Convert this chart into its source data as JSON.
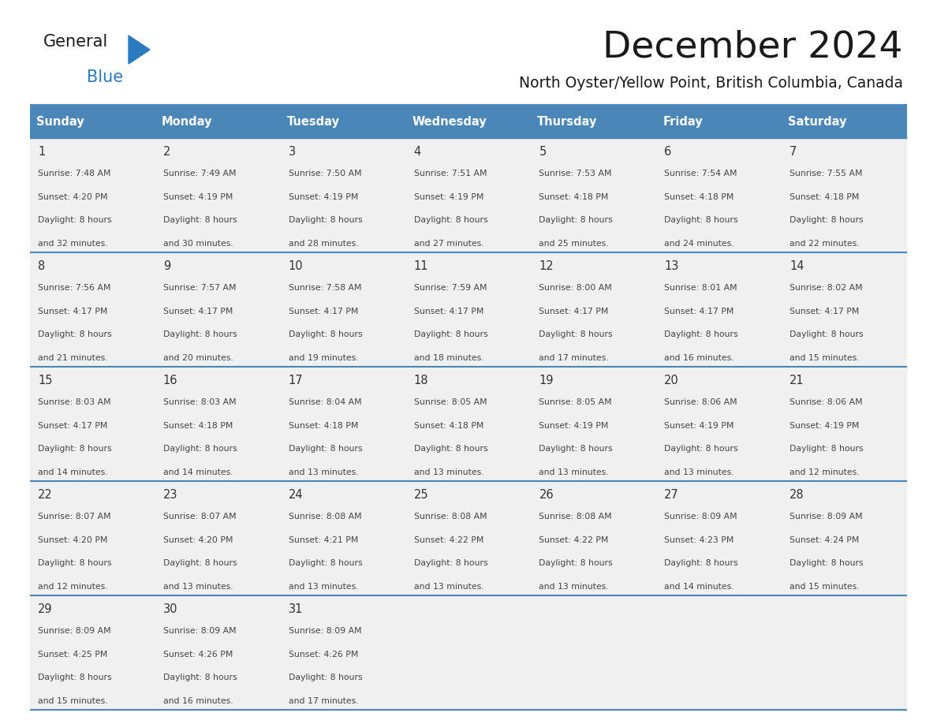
{
  "title": "December 2024",
  "subtitle": "North Oyster/Yellow Point, British Columbia, Canada",
  "header_color": "#4a86b8",
  "header_text_color": "#ffffff",
  "days_of_week": [
    "Sunday",
    "Monday",
    "Tuesday",
    "Wednesday",
    "Thursday",
    "Friday",
    "Saturday"
  ],
  "cell_bg_color": "#f0f0f0",
  "day_num_color": "#333333",
  "text_color": "#444444",
  "line_color": "#4a86b8",
  "calendar_data": [
    [
      {
        "day": 1,
        "sunrise": "7:48 AM",
        "sunset": "4:20 PM",
        "daylight": "8 hours and 32 minutes."
      },
      {
        "day": 2,
        "sunrise": "7:49 AM",
        "sunset": "4:19 PM",
        "daylight": "8 hours and 30 minutes."
      },
      {
        "day": 3,
        "sunrise": "7:50 AM",
        "sunset": "4:19 PM",
        "daylight": "8 hours and 28 minutes."
      },
      {
        "day": 4,
        "sunrise": "7:51 AM",
        "sunset": "4:19 PM",
        "daylight": "8 hours and 27 minutes."
      },
      {
        "day": 5,
        "sunrise": "7:53 AM",
        "sunset": "4:18 PM",
        "daylight": "8 hours and 25 minutes."
      },
      {
        "day": 6,
        "sunrise": "7:54 AM",
        "sunset": "4:18 PM",
        "daylight": "8 hours and 24 minutes."
      },
      {
        "day": 7,
        "sunrise": "7:55 AM",
        "sunset": "4:18 PM",
        "daylight": "8 hours and 22 minutes."
      }
    ],
    [
      {
        "day": 8,
        "sunrise": "7:56 AM",
        "sunset": "4:17 PM",
        "daylight": "8 hours and 21 minutes."
      },
      {
        "day": 9,
        "sunrise": "7:57 AM",
        "sunset": "4:17 PM",
        "daylight": "8 hours and 20 minutes."
      },
      {
        "day": 10,
        "sunrise": "7:58 AM",
        "sunset": "4:17 PM",
        "daylight": "8 hours and 19 minutes."
      },
      {
        "day": 11,
        "sunrise": "7:59 AM",
        "sunset": "4:17 PM",
        "daylight": "8 hours and 18 minutes."
      },
      {
        "day": 12,
        "sunrise": "8:00 AM",
        "sunset": "4:17 PM",
        "daylight": "8 hours and 17 minutes."
      },
      {
        "day": 13,
        "sunrise": "8:01 AM",
        "sunset": "4:17 PM",
        "daylight": "8 hours and 16 minutes."
      },
      {
        "day": 14,
        "sunrise": "8:02 AM",
        "sunset": "4:17 PM",
        "daylight": "8 hours and 15 minutes."
      }
    ],
    [
      {
        "day": 15,
        "sunrise": "8:03 AM",
        "sunset": "4:17 PM",
        "daylight": "8 hours and 14 minutes."
      },
      {
        "day": 16,
        "sunrise": "8:03 AM",
        "sunset": "4:18 PM",
        "daylight": "8 hours and 14 minutes."
      },
      {
        "day": 17,
        "sunrise": "8:04 AM",
        "sunset": "4:18 PM",
        "daylight": "8 hours and 13 minutes."
      },
      {
        "day": 18,
        "sunrise": "8:05 AM",
        "sunset": "4:18 PM",
        "daylight": "8 hours and 13 minutes."
      },
      {
        "day": 19,
        "sunrise": "8:05 AM",
        "sunset": "4:19 PM",
        "daylight": "8 hours and 13 minutes."
      },
      {
        "day": 20,
        "sunrise": "8:06 AM",
        "sunset": "4:19 PM",
        "daylight": "8 hours and 13 minutes."
      },
      {
        "day": 21,
        "sunrise": "8:06 AM",
        "sunset": "4:19 PM",
        "daylight": "8 hours and 12 minutes."
      }
    ],
    [
      {
        "day": 22,
        "sunrise": "8:07 AM",
        "sunset": "4:20 PM",
        "daylight": "8 hours and 12 minutes."
      },
      {
        "day": 23,
        "sunrise": "8:07 AM",
        "sunset": "4:20 PM",
        "daylight": "8 hours and 13 minutes."
      },
      {
        "day": 24,
        "sunrise": "8:08 AM",
        "sunset": "4:21 PM",
        "daylight": "8 hours and 13 minutes."
      },
      {
        "day": 25,
        "sunrise": "8:08 AM",
        "sunset": "4:22 PM",
        "daylight": "8 hours and 13 minutes."
      },
      {
        "day": 26,
        "sunrise": "8:08 AM",
        "sunset": "4:22 PM",
        "daylight": "8 hours and 13 minutes."
      },
      {
        "day": 27,
        "sunrise": "8:09 AM",
        "sunset": "4:23 PM",
        "daylight": "8 hours and 14 minutes."
      },
      {
        "day": 28,
        "sunrise": "8:09 AM",
        "sunset": "4:24 PM",
        "daylight": "8 hours and 15 minutes."
      }
    ],
    [
      {
        "day": 29,
        "sunrise": "8:09 AM",
        "sunset": "4:25 PM",
        "daylight": "8 hours and 15 minutes."
      },
      {
        "day": 30,
        "sunrise": "8:09 AM",
        "sunset": "4:26 PM",
        "daylight": "8 hours and 16 minutes."
      },
      {
        "day": 31,
        "sunrise": "8:09 AM",
        "sunset": "4:26 PM",
        "daylight": "8 hours and 17 minutes."
      },
      null,
      null,
      null,
      null
    ]
  ]
}
